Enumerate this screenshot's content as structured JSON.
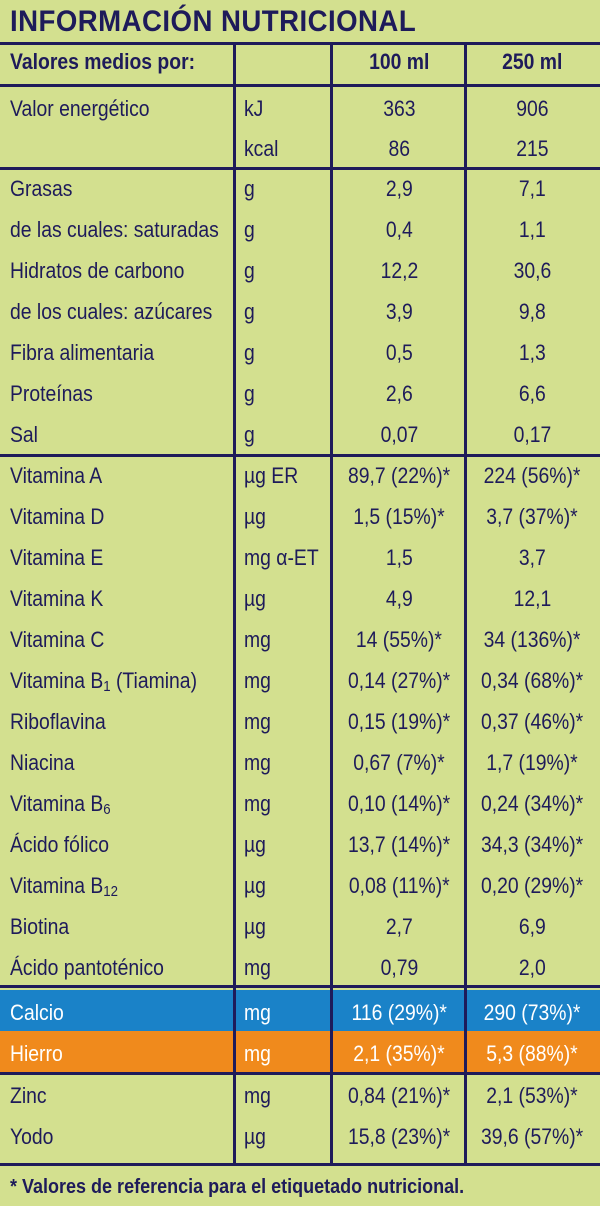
{
  "title": "INFORMACIÓN NUTRICIONAL",
  "header": {
    "label": "Valores medios por:",
    "col1": "100 ml",
    "col2": "250 ml"
  },
  "rows": [
    {
      "name": "Valor energético",
      "unit": "kJ",
      "v1": "363",
      "v2": "906"
    },
    {
      "name": "",
      "unit": "kcal",
      "v1": "86",
      "v2": "215"
    },
    {
      "name": "Grasas",
      "unit": "g",
      "v1": "2,9",
      "v2": "7,1"
    },
    {
      "name": "de las cuales: saturadas",
      "unit": "g",
      "v1": "0,4",
      "v2": "1,1"
    },
    {
      "name": "Hidratos de carbono",
      "unit": "g",
      "v1": "12,2",
      "v2": "30,6"
    },
    {
      "name": "de los cuales: azúcares",
      "unit": "g",
      "v1": "3,9",
      "v2": "9,8"
    },
    {
      "name": "Fibra alimentaria",
      "unit": "g",
      "v1": "0,5",
      "v2": "1,3"
    },
    {
      "name": "Proteínas",
      "unit": "g",
      "v1": "2,6",
      "v2": "6,6"
    },
    {
      "name": "Sal",
      "unit": "g",
      "v1": "0,07",
      "v2": "0,17"
    },
    {
      "name": "Vitamina A",
      "unit": "µg ER",
      "v1": "89,7 (22%)*",
      "v2": "224 (56%)*"
    },
    {
      "name": "Vitamina D",
      "unit": "µg",
      "v1": "1,5 (15%)*",
      "v2": "3,7 (37%)*"
    },
    {
      "name": "Vitamina E",
      "unit": "mg α-ET",
      "v1": "1,5",
      "v2": "3,7"
    },
    {
      "name": "Vitamina K",
      "unit": "µg",
      "v1": "4,9",
      "v2": "12,1"
    },
    {
      "name": "Vitamina C",
      "unit": "mg",
      "v1": "14 (55%)*",
      "v2": "34 (136%)*"
    },
    {
      "name": "Vitamina B",
      "sub": "1",
      "suffix": " (Tiamina)",
      "unit": "mg",
      "v1": "0,14 (27%)*",
      "v2": "0,34 (68%)*"
    },
    {
      "name": "Riboflavina",
      "unit": "mg",
      "v1": "0,15 (19%)*",
      "v2": "0,37 (46%)*"
    },
    {
      "name": "Niacina",
      "unit": "mg",
      "v1": "0,67 (7%)*",
      "v2": "1,7 (19%)*"
    },
    {
      "name": "Vitamina B",
      "sub": "6",
      "unit": "mg",
      "v1": "0,10 (14%)*",
      "v2": "0,24 (34%)*"
    },
    {
      "name": "Ácido fólico",
      "unit": "µg",
      "v1": "13,7 (14%)*",
      "v2": "34,3 (34%)*"
    },
    {
      "name": "Vitamina B",
      "sub": "12",
      "unit": "µg",
      "v1": "0,08 (11%)*",
      "v2": "0,20 (29%)*"
    },
    {
      "name": "Biotina",
      "unit": "µg",
      "v1": "2,7",
      "v2": "6,9"
    },
    {
      "name": "Ácido pantoténico",
      "unit": "mg",
      "v1": "0,79",
      "v2": "2,0"
    },
    {
      "name": "Calcio",
      "unit": "mg",
      "v1": "116 (29%)*",
      "v2": "290 (73%)*",
      "highlight": "#1a82c8"
    },
    {
      "name": "Hierro",
      "unit": "mg",
      "v1": "2,1 (35%)*",
      "v2": "5,3 (88%)*",
      "highlight": "#f08a1c"
    },
    {
      "name": "Zinc",
      "unit": "mg",
      "v1": "0,84 (21%)*",
      "v2": "2,1 (53%)*"
    },
    {
      "name": "Yodo",
      "unit": "µg",
      "v1": "15,8 (23%)*",
      "v2": "39,6 (57%)*"
    }
  ],
  "footnote": "* Valores de referencia para el etiquetado nutricional.",
  "colors": {
    "background": "#d3e08f",
    "ink": "#1e1b5a",
    "calcio": "#1a82c8",
    "hierro": "#f08a1c"
  }
}
